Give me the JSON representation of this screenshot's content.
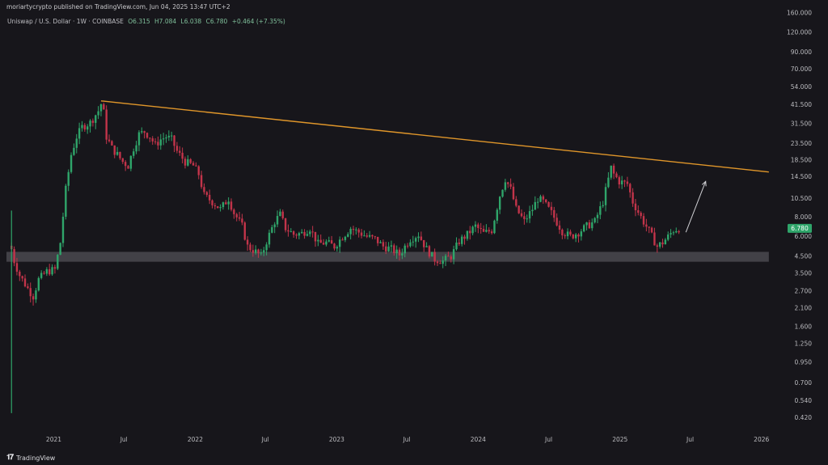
{
  "header": {
    "published": "moriartycrypto published on TradingView.com, Jun 04, 2025 13:47 UTC+2"
  },
  "symbol": {
    "name": "Uniswap / U.S. Dollar · 1W · COINBASE",
    "open": "O6.315",
    "high": "H7.084",
    "low": "L6.038",
    "close": "C6.780",
    "change": "+0.464 (+7.35%)"
  },
  "footer": {
    "brand": "TradingView"
  },
  "colors": {
    "background": "#17161b",
    "up_candle": "#2fa56a",
    "down_candle": "#c2344a",
    "trendline": "#e0962a",
    "support_zone": "#4a494f",
    "price_label_bg": "#2fa56a",
    "axis_text": "#bcbcc0",
    "arrow": "#d0d0d4"
  },
  "chart_data": {
    "type": "candlestick",
    "title": "Uniswap / U.S. Dollar · 1W · COINBASE",
    "scale": "log",
    "ylim": [
      0.35,
      160
    ],
    "y_ticks": [
      "160.000",
      "120.000",
      "90.000",
      "70.000",
      "54.000",
      "41.500",
      "31.500",
      "23.500",
      "18.500",
      "14.500",
      "10.500",
      "8.000",
      "6.000",
      "4.500",
      "3.500",
      "2.700",
      "2.100",
      "1.600",
      "1.250",
      "0.950",
      "0.700",
      "0.540",
      "0.420"
    ],
    "y_tick_values": [
      160,
      120,
      90,
      70,
      54,
      41.5,
      31.5,
      23.5,
      18.5,
      14.5,
      10.5,
      8,
      6,
      4.5,
      3.5,
      2.7,
      2.1,
      1.6,
      1.25,
      0.95,
      0.7,
      0.54,
      0.42
    ],
    "x_ticks": [
      "2021",
      "Jul",
      "2022",
      "Jul",
      "2023",
      "Jul",
      "2024",
      "Jul",
      "2025",
      "Jul",
      "2026"
    ],
    "x_tick_dates": [
      "2021-01-01",
      "2021-07-01",
      "2022-01-01",
      "2022-07-01",
      "2023-01-01",
      "2023-07-01",
      "2024-01-01",
      "2024-07-01",
      "2025-01-01",
      "2025-07-01",
      "2026-01-01"
    ],
    "xlim": [
      "2020-09-01",
      "2026-03-01"
    ],
    "last_price": "6.780",
    "price_path": [
      [
        "2020-09-14",
        5.0
      ],
      [
        "2020-09-21",
        4.2
      ],
      [
        "2020-10-05",
        3.4
      ],
      [
        "2020-10-26",
        2.8
      ],
      [
        "2020-11-09",
        2.5
      ],
      [
        "2020-11-23",
        3.2
      ],
      [
        "2020-12-14",
        3.6
      ],
      [
        "2021-01-04",
        3.7
      ],
      [
        "2021-01-18",
        5.5
      ],
      [
        "2021-02-01",
        12.0
      ],
      [
        "2021-02-15",
        20.0
      ],
      [
        "2021-03-01",
        26.0
      ],
      [
        "2021-03-15",
        30.0
      ],
      [
        "2021-04-05",
        32.0
      ],
      [
        "2021-04-26",
        38.0
      ],
      [
        "2021-05-03",
        42.0
      ],
      [
        "2021-05-10",
        37.0
      ],
      [
        "2021-05-17",
        26.0
      ],
      [
        "2021-05-31",
        22.0
      ],
      [
        "2021-06-14",
        20.0
      ],
      [
        "2021-06-28",
        18.0
      ],
      [
        "2021-07-12",
        17.0
      ],
      [
        "2021-07-26",
        22.0
      ],
      [
        "2021-08-09",
        27.0
      ],
      [
        "2021-08-23",
        28.0
      ],
      [
        "2021-09-06",
        26.0
      ],
      [
        "2021-09-20",
        23.0
      ],
      [
        "2021-10-04",
        25.0
      ],
      [
        "2021-10-18",
        26.0
      ],
      [
        "2021-11-01",
        25.0
      ],
      [
        "2021-11-15",
        21.0
      ],
      [
        "2021-12-06",
        18.0
      ],
      [
        "2021-12-27",
        17.0
      ],
      [
        "2022-01-10",
        15.0
      ],
      [
        "2022-01-24",
        11.0
      ],
      [
        "2022-02-14",
        10.0
      ],
      [
        "2022-03-07",
        9.0
      ],
      [
        "2022-03-28",
        10.5
      ],
      [
        "2022-04-11",
        8.5
      ],
      [
        "2022-05-02",
        7.0
      ],
      [
        "2022-05-16",
        5.2
      ],
      [
        "2022-06-06",
        4.8
      ],
      [
        "2022-06-20",
        4.5
      ],
      [
        "2022-07-04",
        5.6
      ],
      [
        "2022-07-25",
        7.5
      ],
      [
        "2022-08-08",
        8.3
      ],
      [
        "2022-08-22",
        6.8
      ],
      [
        "2022-09-12",
        6.2
      ],
      [
        "2022-10-03",
        6.3
      ],
      [
        "2022-10-24",
        6.8
      ],
      [
        "2022-11-14",
        5.4
      ],
      [
        "2022-12-05",
        5.5
      ],
      [
        "2022-12-26",
        5.2
      ],
      [
        "2023-01-16",
        6.0
      ],
      [
        "2023-02-06",
        6.8
      ],
      [
        "2023-02-27",
        6.4
      ],
      [
        "2023-03-20",
        6.0
      ],
      [
        "2023-04-10",
        5.8
      ],
      [
        "2023-05-01",
        5.2
      ],
      [
        "2023-05-22",
        5.0
      ],
      [
        "2023-06-12",
        4.6
      ],
      [
        "2023-06-26",
        5.2
      ],
      [
        "2023-07-10",
        5.8
      ],
      [
        "2023-07-31",
        6.2
      ],
      [
        "2023-08-21",
        5.0
      ],
      [
        "2023-09-11",
        4.3
      ],
      [
        "2023-10-02",
        4.2
      ],
      [
        "2023-10-23",
        4.5
      ],
      [
        "2023-11-13",
        5.6
      ],
      [
        "2023-12-04",
        6.2
      ],
      [
        "2023-12-25",
        7.0
      ],
      [
        "2024-01-15",
        6.3
      ],
      [
        "2024-02-05",
        6.6
      ],
      [
        "2024-02-26",
        11.0
      ],
      [
        "2024-03-11",
        14.0
      ],
      [
        "2024-03-25",
        12.0
      ],
      [
        "2024-04-08",
        9.0
      ],
      [
        "2024-04-29",
        7.5
      ],
      [
        "2024-05-20",
        9.0
      ],
      [
        "2024-06-03",
        10.5
      ],
      [
        "2024-06-17",
        10.0
      ],
      [
        "2024-07-08",
        8.5
      ],
      [
        "2024-08-05",
        6.5
      ],
      [
        "2024-08-26",
        6.0
      ],
      [
        "2024-09-16",
        6.4
      ],
      [
        "2024-10-07",
        7.0
      ],
      [
        "2024-10-28",
        7.5
      ],
      [
        "2024-11-18",
        10.0
      ],
      [
        "2024-12-09",
        16.5
      ],
      [
        "2024-12-16",
        15.0
      ],
      [
        "2024-12-30",
        13.5
      ],
      [
        "2025-01-20",
        13.0
      ],
      [
        "2025-02-03",
        10.0
      ],
      [
        "2025-02-24",
        8.0
      ],
      [
        "2025-03-17",
        6.5
      ],
      [
        "2025-04-07",
        5.2
      ],
      [
        "2025-04-21",
        5.5
      ],
      [
        "2025-05-05",
        6.0
      ],
      [
        "2025-05-19",
        6.6
      ],
      [
        "2025-06-02",
        6.78
      ]
    ],
    "annotations": [
      {
        "type": "trendline",
        "from": [
          "2021-05-03",
          44
        ],
        "to": [
          "2026-01-20",
          15.5
        ]
      },
      {
        "type": "support_zone",
        "from": "2020-09-01",
        "to": "2026-01-20",
        "low": 4.15,
        "high": 4.8
      },
      {
        "type": "arrow",
        "from": [
          "2025-06-20",
          6.4
        ],
        "to": [
          "2025-08-10",
          13.5
        ]
      }
    ]
  }
}
